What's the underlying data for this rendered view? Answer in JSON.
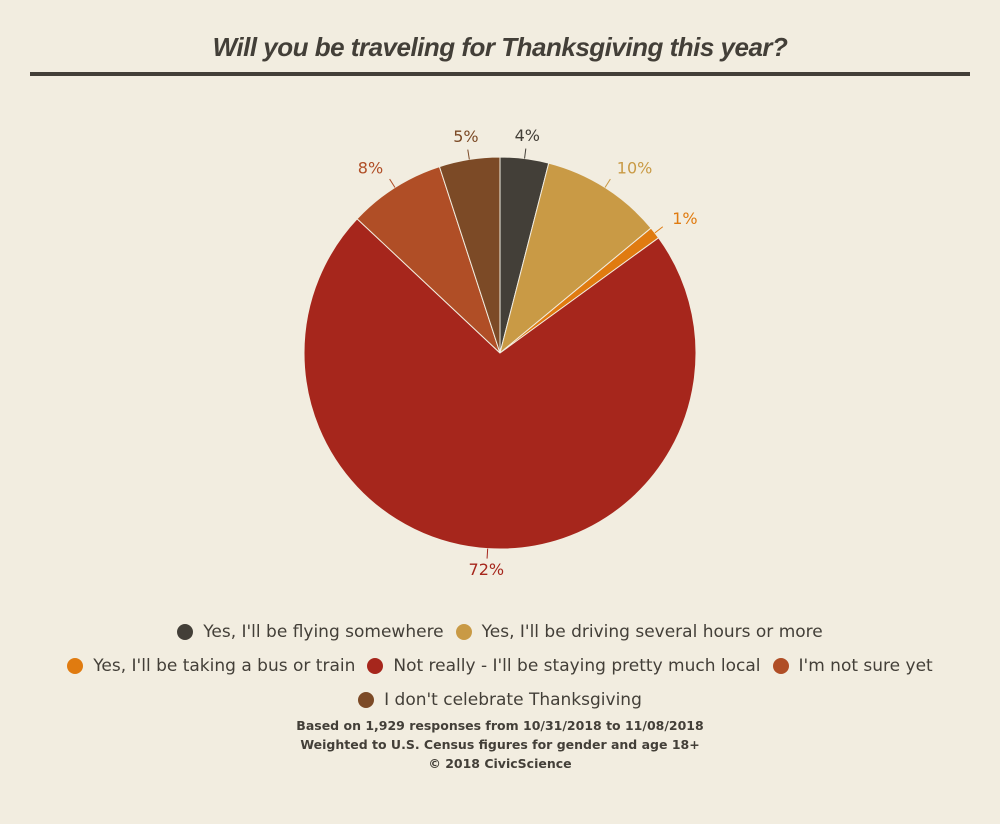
{
  "chart_data": {
    "type": "pie",
    "title": "Will you be traveling for Thanksgiving this year?",
    "categories": [
      "Yes, I'll be flying somewhere",
      "Yes, I'll be driving several hours or more",
      "Yes, I'll be taking a bus or train",
      "Not really - I'll be staying pretty much local",
      "I'm not sure yet",
      "I don't celebrate Thanksgiving"
    ],
    "values": [
      4,
      10,
      1,
      72,
      8,
      5
    ],
    "value_labels": [
      "4%",
      "10%",
      "1%",
      "72%",
      "8%",
      "5%"
    ],
    "colors": [
      "#433f38",
      "#c99a45",
      "#e07b10",
      "#a6261c",
      "#b04e26",
      "#7c4a26"
    ],
    "notes": [
      "Based on 1,929 responses from 10/31/2018 to 11/08/2018",
      "Weighted to U.S. Census figures for gender and age 18+",
      "© 2018 CivicScience"
    ]
  }
}
